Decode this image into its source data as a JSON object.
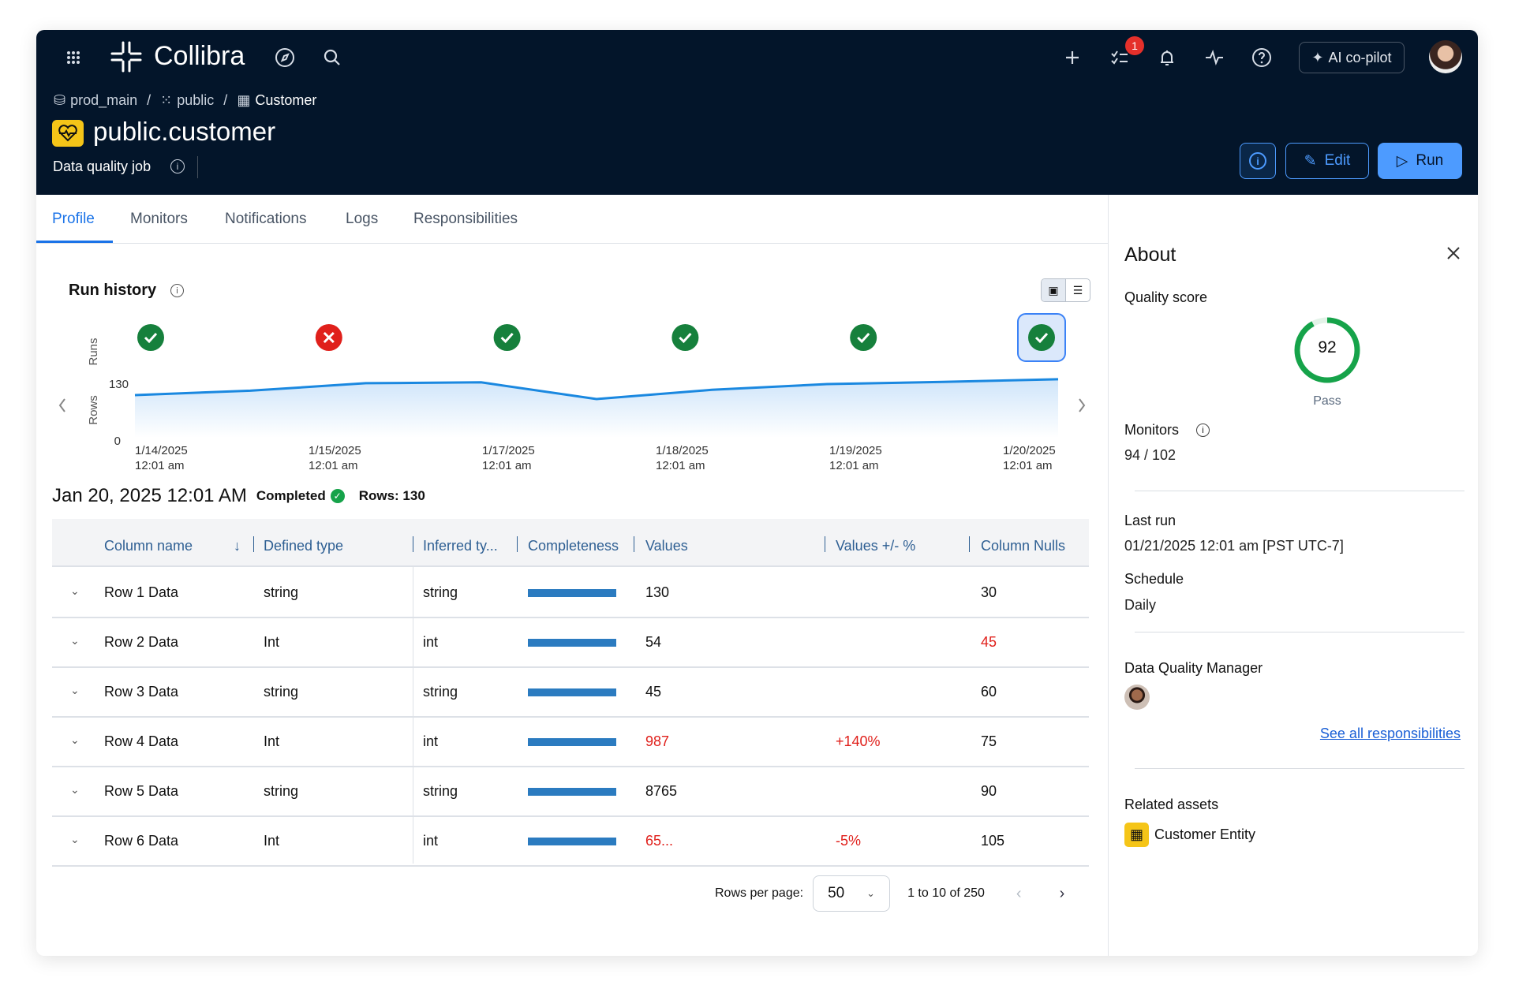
{
  "nav": {
    "brand": "Collibra",
    "tasks_badge": "1",
    "ai_label": "AI co-pilot"
  },
  "breadcrumb": [
    {
      "label": "prod_main",
      "icon": "database-icon"
    },
    {
      "label": "public",
      "icon": "schema-icon"
    },
    {
      "label": "Customer",
      "icon": "table-icon"
    }
  ],
  "breadcrumb_sep": "/",
  "header": {
    "title": "public.customer",
    "subtitle": "Data quality job",
    "edit_label": "Edit",
    "run_label": "Run"
  },
  "tabs": [
    {
      "label": "Profile",
      "active": true
    },
    {
      "label": "Monitors"
    },
    {
      "label": "Notifications"
    },
    {
      "label": "Logs"
    },
    {
      "label": "Responsibilities"
    }
  ],
  "run_history": {
    "title": "Run history",
    "runs_axis": "Runs",
    "rows_axis": "Rows",
    "runs": [
      {
        "status": "pass"
      },
      {
        "status": "fail"
      },
      {
        "status": "pass"
      },
      {
        "status": "pass"
      },
      {
        "status": "pass"
      },
      {
        "status": "pass",
        "selected": true
      }
    ]
  },
  "chart_data": {
    "type": "area",
    "ylabel": "Rows",
    "ylim": [
      0,
      130
    ],
    "yticks": [
      "0",
      "130"
    ],
    "xticks": [
      {
        "date": "1/14/2025",
        "time": "12:01 am"
      },
      {
        "date": "1/15/2025",
        "time": "12:01 am"
      },
      {
        "date": "1/17/2025",
        "time": "12:01 am"
      },
      {
        "date": "1/18/2025",
        "time": "12:01 am"
      },
      {
        "date": "1/19/2025",
        "time": "12:01 am"
      },
      {
        "date": "1/20/2025",
        "time": "12:01 am"
      }
    ],
    "values": [
      97,
      107,
      124,
      126,
      88,
      109,
      122,
      127,
      133
    ],
    "color": "#1a88e0",
    "grid": false
  },
  "run_summary": {
    "datetime": "Jan 20, 2025 12:01 AM",
    "status": "Completed",
    "rows": "Rows: 130"
  },
  "table": {
    "headers": [
      "Column name",
      "Defined type",
      "Inferred ty...",
      "Completeness",
      "Values",
      "Values +/- %",
      "Column Nulls"
    ],
    "rows": [
      {
        "name": "Row 1 Data",
        "defined": "string",
        "inferred": "string",
        "completeness": 100,
        "values": "130",
        "values_red": false,
        "delta": "",
        "nulls": "30",
        "nulls_red": false
      },
      {
        "name": "Row 2 Data",
        "defined": "Int",
        "inferred": "int",
        "completeness": 100,
        "values": "54",
        "values_red": false,
        "delta": "",
        "nulls": "45",
        "nulls_red": true
      },
      {
        "name": "Row 3 Data",
        "defined": "string",
        "inferred": "string",
        "completeness": 100,
        "values": "45",
        "values_red": false,
        "delta": "",
        "nulls": "60",
        "nulls_red": false
      },
      {
        "name": "Row 4 Data",
        "defined": "Int",
        "inferred": "int",
        "completeness": 100,
        "values": "987",
        "values_red": true,
        "delta": "+140%",
        "nulls": "75",
        "nulls_red": false
      },
      {
        "name": "Row 5 Data",
        "defined": "string",
        "inferred": "string",
        "completeness": 100,
        "values": "8765",
        "values_red": false,
        "delta": "",
        "nulls": "90",
        "nulls_red": false
      },
      {
        "name": "Row 6 Data",
        "defined": "Int",
        "inferred": "int",
        "completeness": 100,
        "values": "65...",
        "values_red": true,
        "delta": "-5%",
        "nulls": "105",
        "nulls_red": false
      }
    ]
  },
  "pagination": {
    "rows_per_page_label": "Rows per page:",
    "rows_per_page": "50",
    "range": "1 to 10 of 250"
  },
  "about": {
    "title": "About",
    "quality_label": "Quality score",
    "quality_score": 92,
    "quality_status": "Pass",
    "monitors_label": "Monitors",
    "monitors_value": "94 / 102",
    "last_run_label": "Last run",
    "last_run_value": "01/21/2025 12:01 am [PST UTC-7]",
    "schedule_label": "Schedule",
    "schedule_value": "Daily",
    "dqm_label": "Data Quality Manager",
    "see_all": "See all responsibilities",
    "related_label": "Related assets",
    "related_asset": "Customer Entity"
  },
  "colors": {
    "header_bg": "#03152a",
    "accent": "#1a73e8",
    "run_button": "#4d9bff",
    "pass": "#16803c",
    "fail": "#e0201b",
    "score": "#16a34a"
  }
}
